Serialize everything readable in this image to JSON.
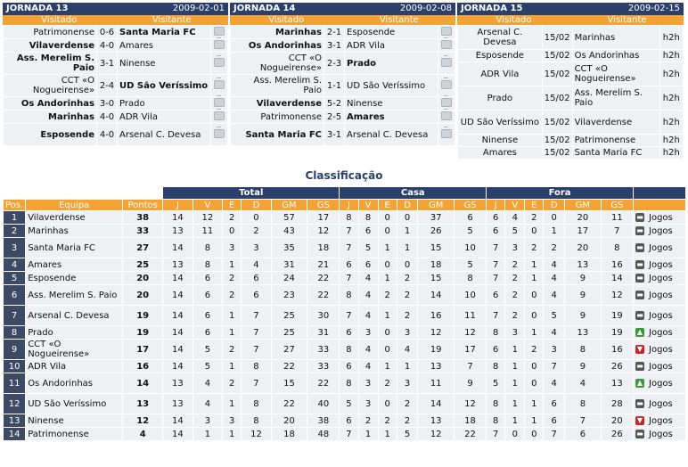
{
  "jornadas": [
    {
      "title": "JORNADA 13",
      "date": "2009-02-01",
      "col_home": "Visitado",
      "col_away": "Visitante",
      "games": [
        {
          "home": "Patrimonense",
          "score": "0-6",
          "away": "Santa Maria FC",
          "home_bold": false,
          "away_bold": true
        },
        {
          "home": "Vilaverdense",
          "score": "4-0",
          "away": "Amares",
          "home_bold": true,
          "away_bold": false
        },
        {
          "home": "Ass. Merelim S. Paio",
          "score": "3-1",
          "away": "Ninense",
          "home_bold": true,
          "away_bold": false
        },
        {
          "home": "CCT «O Nogueirense»",
          "score": "2-4",
          "away": "UD São Veríssimo",
          "home_bold": false,
          "away_bold": true
        },
        {
          "home": "Os Andorinhas",
          "score": "3-0",
          "away": "Prado",
          "home_bold": true,
          "away_bold": false
        },
        {
          "home": "Marinhas",
          "score": "4-0",
          "away": "ADR Vila",
          "home_bold": true,
          "away_bold": false
        },
        {
          "home": "Esposende",
          "score": "4-0",
          "away": "Arsenal C. Devesa",
          "home_bold": true,
          "away_bold": false
        }
      ]
    },
    {
      "title": "JORNADA 14",
      "date": "2009-02-08",
      "col_home": "Visitado",
      "col_away": "Visitante",
      "games": [
        {
          "home": "Marinhas",
          "score": "2-1",
          "away": "Esposende",
          "home_bold": true,
          "away_bold": false
        },
        {
          "home": "Os Andorinhas",
          "score": "3-1",
          "away": "ADR Vila",
          "home_bold": true,
          "away_bold": false
        },
        {
          "home": "CCT «O Nogueirense»",
          "score": "2-3",
          "away": "Prado",
          "home_bold": false,
          "away_bold": true
        },
        {
          "home": "Ass. Merelim S. Paio",
          "score": "1-1",
          "away": "UD São Veríssimo",
          "home_bold": false,
          "away_bold": false
        },
        {
          "home": "Vilaverdense",
          "score": "5-2",
          "away": "Ninense",
          "home_bold": true,
          "away_bold": false
        },
        {
          "home": "Patrimonense",
          "score": "2-5",
          "away": "Amares",
          "home_bold": false,
          "away_bold": true
        },
        {
          "home": "Santa Maria FC",
          "score": "3-1",
          "away": "Arsenal C. Devesa",
          "home_bold": true,
          "away_bold": false
        }
      ]
    },
    {
      "title": "JORNADA 15",
      "date": "2009-02-15",
      "col_home": "Visitado",
      "col_away": "Visitante",
      "games": [
        {
          "home": "Arsenal C. Devesa",
          "date": "15/02",
          "away": "Marinhas",
          "time": "h2h"
        },
        {
          "home": "Esposende",
          "date": "15/02",
          "away": "Os Andorinhas",
          "time": "h2h"
        },
        {
          "home": "ADR Vila",
          "date": "15/02",
          "away": "CCT «O Nogueirense»",
          "time": "h2h"
        },
        {
          "home": "Prado",
          "date": "15/02",
          "away": "Ass. Merelim S. Paio",
          "time": "h2h"
        },
        {
          "home": "UD São Veríssimo",
          "date": "15/02",
          "away": "Vilaverdense",
          "time": "h2h"
        },
        {
          "home": "Ninense",
          "date": "15/02",
          "away": "Patrimonense",
          "time": "h2h"
        },
        {
          "home": "Amares",
          "date": "15/02",
          "away": "Santa Maria FC",
          "time": "h2h"
        }
      ]
    }
  ],
  "classification": {
    "title": "Classificação",
    "groups": {
      "total": "Total",
      "casa": "Casa",
      "fora": "Fora"
    },
    "headers": {
      "pos": "Pos.",
      "team": "Equipa",
      "points": "Pontos",
      "total": [
        "J",
        "V",
        "E",
        "D",
        "GM",
        "GS"
      ],
      "casa": [
        "J",
        "V",
        "E",
        "D",
        "GM",
        "GS"
      ],
      "fora": [
        "J",
        "V",
        "E",
        "D",
        "GM",
        "GS"
      ]
    },
    "jogos_label": "Jogos",
    "rows": [
      {
        "pos": "1",
        "team": "Vilaverdense",
        "points": "38",
        "total": [
          "14",
          "12",
          "2",
          "0",
          "57",
          "17"
        ],
        "casa": [
          "8",
          "8",
          "0",
          "0",
          "37",
          "6"
        ],
        "fora": [
          "6",
          "4",
          "2",
          "0",
          "20",
          "11"
        ],
        "move": "same"
      },
      {
        "pos": "2",
        "team": "Marinhas",
        "points": "33",
        "total": [
          "13",
          "11",
          "0",
          "2",
          "43",
          "12"
        ],
        "casa": [
          "7",
          "6",
          "0",
          "1",
          "26",
          "5"
        ],
        "fora": [
          "6",
          "5",
          "0",
          "1",
          "17",
          "7"
        ],
        "move": "same"
      },
      {
        "pos": "3",
        "team": "Santa Maria FC",
        "points": "27",
        "total": [
          "14",
          "8",
          "3",
          "3",
          "35",
          "18"
        ],
        "casa": [
          "7",
          "5",
          "1",
          "1",
          "15",
          "10"
        ],
        "fora": [
          "7",
          "3",
          "2",
          "2",
          "20",
          "8"
        ],
        "move": "same"
      },
      {
        "pos": "4",
        "team": "Amares",
        "points": "25",
        "total": [
          "13",
          "8",
          "1",
          "4",
          "31",
          "21"
        ],
        "casa": [
          "6",
          "6",
          "0",
          "0",
          "18",
          "5"
        ],
        "fora": [
          "7",
          "2",
          "1",
          "4",
          "13",
          "16"
        ],
        "move": "same"
      },
      {
        "pos": "5",
        "team": "Esposende",
        "points": "20",
        "total": [
          "14",
          "6",
          "2",
          "6",
          "24",
          "22"
        ],
        "casa": [
          "7",
          "4",
          "1",
          "2",
          "15",
          "8"
        ],
        "fora": [
          "7",
          "2",
          "1",
          "4",
          "9",
          "14"
        ],
        "move": "same"
      },
      {
        "pos": "6",
        "team": "Ass. Merelim S. Paio",
        "points": "20",
        "total": [
          "14",
          "6",
          "2",
          "6",
          "23",
          "22"
        ],
        "casa": [
          "8",
          "4",
          "2",
          "2",
          "14",
          "10"
        ],
        "fora": [
          "6",
          "2",
          "0",
          "4",
          "9",
          "12"
        ],
        "move": "same"
      },
      {
        "pos": "7",
        "team": "Arsenal C. Devesa",
        "points": "19",
        "total": [
          "14",
          "6",
          "1",
          "7",
          "25",
          "30"
        ],
        "casa": [
          "7",
          "4",
          "1",
          "2",
          "16",
          "11"
        ],
        "fora": [
          "7",
          "2",
          "0",
          "5",
          "9",
          "19"
        ],
        "move": "same"
      },
      {
        "pos": "8",
        "team": "Prado",
        "points": "19",
        "total": [
          "14",
          "6",
          "1",
          "7",
          "25",
          "31"
        ],
        "casa": [
          "6",
          "3",
          "0",
          "3",
          "12",
          "12"
        ],
        "fora": [
          "8",
          "3",
          "1",
          "4",
          "13",
          "19"
        ],
        "move": "up"
      },
      {
        "pos": "9",
        "team": "CCT «O Nogueirense»",
        "points": "17",
        "total": [
          "14",
          "5",
          "2",
          "7",
          "27",
          "33"
        ],
        "casa": [
          "8",
          "4",
          "0",
          "4",
          "19",
          "17"
        ],
        "fora": [
          "6",
          "1",
          "2",
          "3",
          "8",
          "16"
        ],
        "move": "down"
      },
      {
        "pos": "10",
        "team": "ADR Vila",
        "points": "16",
        "total": [
          "14",
          "5",
          "1",
          "8",
          "22",
          "33"
        ],
        "casa": [
          "6",
          "4",
          "1",
          "1",
          "13",
          "7"
        ],
        "fora": [
          "8",
          "1",
          "0",
          "7",
          "9",
          "26"
        ],
        "move": "same"
      },
      {
        "pos": "11",
        "team": "Os Andorinhas",
        "points": "14",
        "total": [
          "13",
          "4",
          "2",
          "7",
          "15",
          "22"
        ],
        "casa": [
          "8",
          "3",
          "2",
          "3",
          "11",
          "9"
        ],
        "fora": [
          "5",
          "1",
          "0",
          "4",
          "4",
          "13"
        ],
        "move": "up"
      },
      {
        "pos": "12",
        "team": "UD São Veríssimo",
        "points": "13",
        "total": [
          "13",
          "4",
          "1",
          "8",
          "22",
          "40"
        ],
        "casa": [
          "5",
          "3",
          "0",
          "2",
          "14",
          "12"
        ],
        "fora": [
          "8",
          "1",
          "1",
          "6",
          "8",
          "28"
        ],
        "move": "same"
      },
      {
        "pos": "13",
        "team": "Ninense",
        "points": "12",
        "total": [
          "14",
          "3",
          "3",
          "8",
          "20",
          "38"
        ],
        "casa": [
          "6",
          "2",
          "2",
          "2",
          "13",
          "18"
        ],
        "fora": [
          "8",
          "1",
          "1",
          "6",
          "7",
          "20"
        ],
        "move": "down"
      },
      {
        "pos": "14",
        "team": "Patrimonense",
        "points": "4",
        "total": [
          "14",
          "1",
          "1",
          "12",
          "18",
          "48"
        ],
        "casa": [
          "7",
          "1",
          "1",
          "5",
          "12",
          "22"
        ],
        "fora": [
          "7",
          "0",
          "0",
          "7",
          "6",
          "26"
        ],
        "move": "same"
      }
    ]
  },
  "colors": {
    "navy": "#2a3f6c",
    "orange": "#f4a234",
    "row_bg": "#eef0f3"
  }
}
